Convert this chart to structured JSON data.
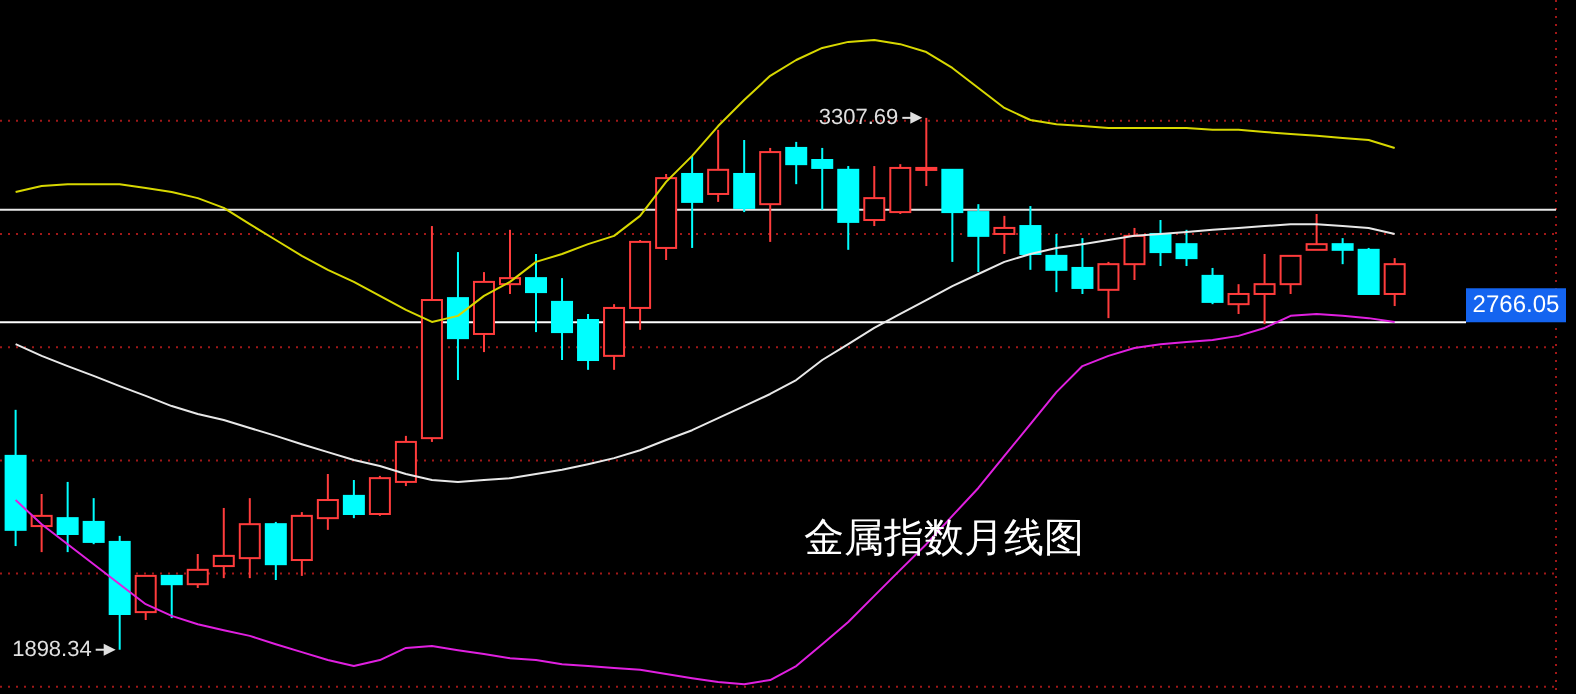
{
  "chart_data": {
    "type": "candlestick",
    "title": "金属指数月线图",
    "categories": [
      null,
      null,
      null,
      null,
      null,
      null,
      null,
      null,
      null,
      null,
      null,
      null,
      null,
      null,
      null,
      null,
      null,
      null,
      null,
      null,
      null,
      null,
      null,
      null,
      null,
      null,
      null,
      null,
      null,
      null,
      null,
      null,
      null,
      null,
      null,
      null,
      null,
      null,
      null,
      null,
      null,
      null,
      null,
      null,
      null,
      null,
      null,
      null,
      null,
      null,
      null,
      null,
      null,
      null
    ],
    "ohlc": [
      [
        2412,
        2534,
        2173,
        2216
      ],
      [
        2226,
        2311,
        2157,
        2253
      ],
      [
        2247,
        2343,
        2157,
        2205
      ],
      [
        2237,
        2300,
        2178,
        2184
      ],
      [
        2184,
        2200,
        1898.34,
        1993
      ],
      [
        1998,
        2094,
        1977,
        2094
      ],
      [
        2094,
        2094,
        1982,
        2072
      ],
      [
        2072,
        2152,
        2062,
        2110
      ],
      [
        2120,
        2274,
        2088,
        2147
      ],
      [
        2141,
        2300,
        2088,
        2231
      ],
      [
        2231,
        2237,
        2083,
        2125
      ],
      [
        2136,
        2263,
        2094,
        2253
      ],
      [
        2247,
        2364,
        2216,
        2295
      ],
      [
        2306,
        2348,
        2247,
        2258
      ],
      [
        2258,
        2359,
        2253,
        2353
      ],
      [
        2343,
        2465,
        2332,
        2449
      ],
      [
        2459,
        3021,
        2449,
        2825
      ],
      [
        2830,
        2952,
        2613,
        2724
      ],
      [
        2735,
        2899,
        2687,
        2873
      ],
      [
        2867,
        3011,
        2841,
        2883
      ],
      [
        2883,
        2947,
        2740,
        2846
      ],
      [
        2820,
        2883,
        2666,
        2740
      ],
      [
        2772,
        2788,
        2640,
        2666
      ],
      [
        2677,
        2814,
        2640,
        2804
      ],
      [
        2804,
        2984,
        2746,
        2979
      ],
      [
        2963,
        3159,
        2931,
        3148
      ],
      [
        3159,
        3207,
        2963,
        3085
      ],
      [
        3106,
        3276,
        3085,
        3170
      ],
      [
        3159,
        3249,
        3058,
        3069
      ],
      [
        3079,
        3228,
        2979,
        3217
      ],
      [
        3228,
        3244,
        3132,
        3185
      ],
      [
        3196,
        3228,
        3064,
        3175
      ],
      [
        3170,
        3180,
        2958,
        3032
      ],
      [
        3037,
        3180,
        3021,
        3095
      ],
      [
        3058,
        3185,
        3053,
        3175
      ],
      [
        3170,
        3307.69,
        3127,
        3175
      ],
      [
        3170,
        3170,
        2926,
        3058
      ],
      [
        3058,
        3079,
        2899,
        2995
      ],
      [
        3000,
        3048,
        2947,
        3016
      ],
      [
        3021,
        3074,
        2905,
        2947
      ],
      [
        2942,
        3000,
        2846,
        2905
      ],
      [
        2910,
        2989,
        2841,
        2857
      ],
      [
        2852,
        2926,
        2777,
        2920
      ],
      [
        2920,
        3016,
        2878,
        2995
      ],
      [
        3000,
        3037,
        2915,
        2952
      ],
      [
        2973,
        3011,
        2915,
        2936
      ],
      [
        2889,
        2910,
        2814,
        2820
      ],
      [
        2814,
        2867,
        2788,
        2841
      ],
      [
        2841,
        2947,
        2761,
        2867
      ],
      [
        2867,
        2942,
        2841,
        2942
      ],
      [
        2958,
        3053,
        2958,
        2973
      ],
      [
        2973,
        2989,
        2920,
        2958
      ],
      [
        2958,
        2963,
        2841,
        2841
      ],
      [
        2841,
        2936,
        2809,
        2920
      ]
    ],
    "colors": [
      "#00ffff",
      "#ff3c3c",
      "#00ffff",
      "#00ffff",
      "#00ffff",
      "#ff3c3c",
      "#00ffff",
      "#ff3c3c",
      "#ff3c3c",
      "#ff3c3c",
      "#00ffff",
      "#ff3c3c",
      "#ff3c3c",
      "#00ffff",
      "#ff3c3c",
      "#ff3c3c",
      "#ff3c3c",
      "#00ffff",
      "#ff3c3c",
      "#ff3c3c",
      "#00ffff",
      "#00ffff",
      "#00ffff",
      "#ff3c3c",
      "#ff3c3c",
      "#ff3c3c",
      "#00ffff",
      "#ff3c3c",
      "#00ffff",
      "#ff3c3c",
      "#00ffff",
      "#00ffff",
      "#00ffff",
      "#ff3c3c",
      "#ff3c3c",
      "#ff3c3c",
      "#00ffff",
      "#00ffff",
      "#ff3c3c",
      "#00ffff",
      "#00ffff",
      "#00ffff",
      "#ff3c3c",
      "#ff3c3c",
      "#00ffff",
      "#00ffff",
      "#00ffff",
      "#ff3c3c",
      "#ff3c3c",
      "#ff3c3c",
      "#ff3c3c",
      "#00ffff",
      "#00ffff",
      "#ff3c3c"
    ],
    "series": [
      {
        "type": "line",
        "color": "#d8d800",
        "values": [
          3111,
          3127,
          3132,
          3132,
          3132,
          3122,
          3111,
          3095,
          3069,
          3026,
          2984,
          2942,
          2905,
          2873,
          2836,
          2799,
          2767,
          2783,
          2836,
          2873,
          2926,
          2947,
          2973,
          2995,
          3048,
          3138,
          3207,
          3286,
          3355,
          3419,
          3461,
          3493,
          3509,
          3514,
          3503,
          3482,
          3440,
          3387,
          3334,
          3302,
          3291,
          3286,
          3281,
          3281,
          3281,
          3281,
          3276,
          3276,
          3270,
          3265,
          3260,
          3254,
          3249,
          3228
        ]
      },
      {
        "type": "line",
        "color": "#e8e8e8",
        "values": [
          2708,
          2677,
          2650,
          2624,
          2597,
          2571,
          2544,
          2523,
          2507,
          2486,
          2465,
          2443,
          2422,
          2401,
          2385,
          2364,
          2348,
          2343,
          2348,
          2353,
          2364,
          2375,
          2390,
          2406,
          2427,
          2454,
          2480,
          2512,
          2544,
          2576,
          2613,
          2666,
          2708,
          2751,
          2788,
          2825,
          2862,
          2894,
          2926,
          2947,
          2963,
          2973,
          2984,
          2995,
          3000,
          3005,
          3011,
          3016,
          3021,
          3026,
          3026,
          3021,
          3016,
          3000
        ]
      },
      {
        "type": "line",
        "color": "#e020e0",
        "values": [
          2295,
          2231,
          2178,
          2125,
          2072,
          2019,
          1988,
          1966,
          1950,
          1935,
          1913,
          1892,
          1871,
          1855,
          1871,
          1903,
          1908,
          1897,
          1887,
          1876,
          1871,
          1860,
          1855,
          1850,
          1845,
          1834,
          1823,
          1813,
          1807,
          1818,
          1855,
          1913,
          1972,
          2041,
          2110,
          2178,
          2253,
          2327,
          2412,
          2496,
          2581,
          2650,
          2677,
          2698,
          2708,
          2714,
          2719,
          2730,
          2751,
          2783,
          2788,
          2783,
          2777,
          2767
        ]
      }
    ],
    "ylim": [
      1781,
      3620
    ],
    "yticks": [
      {
        "value": 3300,
        "label": null
      },
      {
        "value": 3000,
        "label": null
      },
      {
        "value": 2700,
        "label": null
      },
      {
        "value": 2400,
        "label": null
      },
      {
        "value": 2100,
        "label": null
      },
      {
        "value": 1800,
        "label": null
      }
    ],
    "grid": "y",
    "tick_labels": false,
    "ref_lines": [
      {
        "axis": "y",
        "value": 3064,
        "label": null,
        "color": "#e8e8e8"
      },
      {
        "axis": "y",
        "value": 2766.05,
        "label": "2766.05",
        "color": "#ffffff"
      }
    ],
    "annotations": [
      "3307.69",
      "1898.34"
    ]
  }
}
